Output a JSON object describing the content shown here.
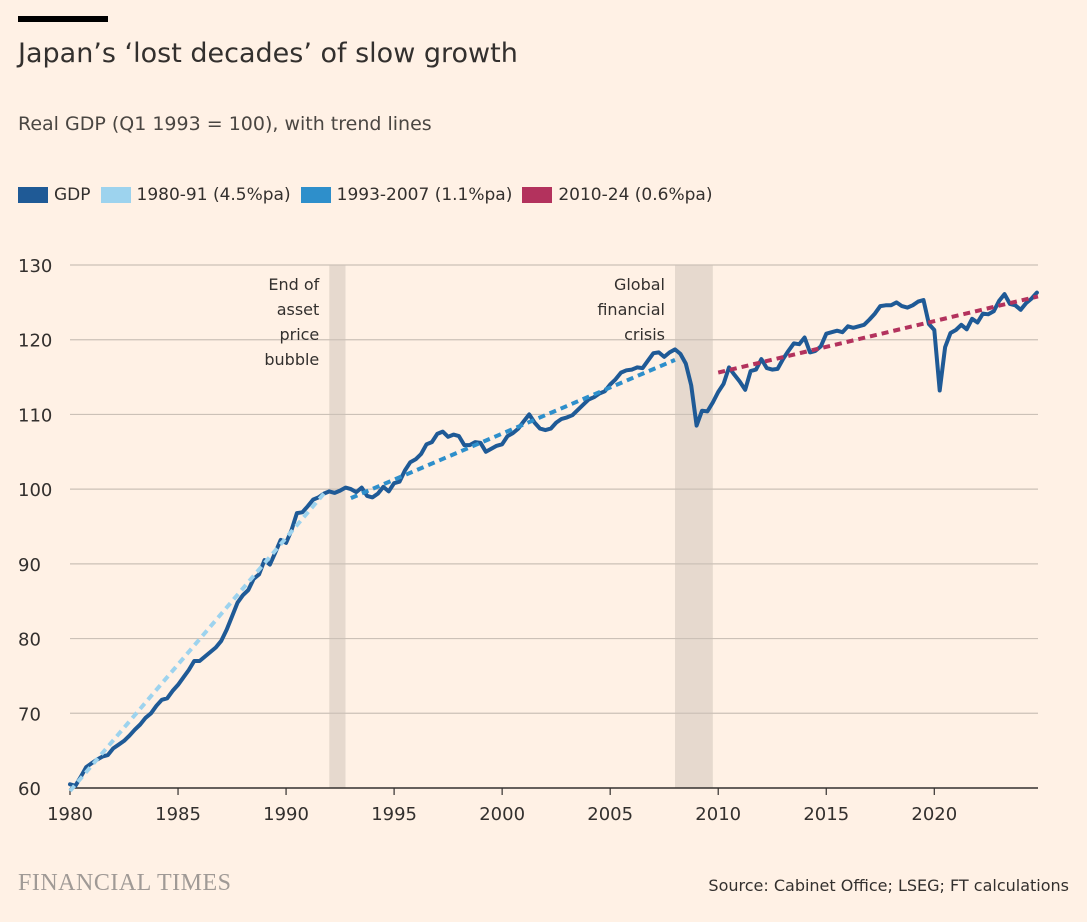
{
  "header": {
    "title": "Japan’s ‘lost decades’ of slow growth",
    "subtitle": "Real GDP (Q1 1993 = 100), with trend lines"
  },
  "legend": [
    {
      "label": "GDP",
      "color": "#1F5A96"
    },
    {
      "label": "1980-91 (4.5%pa)",
      "color": "#9DD3EE"
    },
    {
      "label": "1993-2007 (1.1%pa)",
      "color": "#2E8FCB"
    },
    {
      "label": "2010-24 (0.6%pa)",
      "color": "#B3325D"
    }
  ],
  "footer": {
    "brand": "FINANCIAL TIMES",
    "source": "Source: Cabinet Office; LSEG; FT calculations"
  },
  "chart_data": {
    "type": "line",
    "xlim": [
      1980,
      2024.8
    ],
    "ylim": [
      60,
      130
    ],
    "x_ticks": [
      "1980",
      "1985",
      "1990",
      "1995",
      "2000",
      "2005",
      "2010",
      "2015",
      "2020"
    ],
    "y_ticks": [
      "60",
      "70",
      "80",
      "90",
      "100",
      "110",
      "120",
      "130"
    ],
    "grid": true,
    "shaded_periods": [
      {
        "label_lines": [
          "End of",
          "asset",
          "price",
          "bubble"
        ],
        "start": 1992.0,
        "end": 1992.75
      },
      {
        "label_lines": [
          "Global",
          "financial",
          "crisis"
        ],
        "start": 2008.0,
        "end": 2009.75
      }
    ],
    "series": [
      {
        "name": "GDP",
        "color": "#1F5A96",
        "points": [
          [
            1980.0,
            60.5
          ],
          [
            1980.25,
            60.3
          ],
          [
            1980.5,
            61.5
          ],
          [
            1980.75,
            62.8
          ],
          [
            1981.0,
            63.3
          ],
          [
            1981.25,
            63.8
          ],
          [
            1981.5,
            64.2
          ],
          [
            1981.75,
            64.4
          ],
          [
            1982.0,
            65.3
          ],
          [
            1982.25,
            65.8
          ],
          [
            1982.5,
            66.3
          ],
          [
            1982.75,
            67.0
          ],
          [
            1983.0,
            67.8
          ],
          [
            1983.25,
            68.5
          ],
          [
            1983.5,
            69.4
          ],
          [
            1983.75,
            70.0
          ],
          [
            1984.0,
            71.0
          ],
          [
            1984.25,
            71.8
          ],
          [
            1984.5,
            72.0
          ],
          [
            1984.75,
            73.0
          ],
          [
            1985.0,
            73.8
          ],
          [
            1985.25,
            74.8
          ],
          [
            1985.5,
            75.8
          ],
          [
            1985.75,
            77.0
          ],
          [
            1986.0,
            77.0
          ],
          [
            1986.25,
            77.6
          ],
          [
            1986.5,
            78.2
          ],
          [
            1986.75,
            78.8
          ],
          [
            1987.0,
            79.7
          ],
          [
            1987.25,
            81.2
          ],
          [
            1987.5,
            83.0
          ],
          [
            1987.75,
            84.8
          ],
          [
            1988.0,
            85.8
          ],
          [
            1988.25,
            86.5
          ],
          [
            1988.5,
            88.0
          ],
          [
            1988.75,
            88.6
          ],
          [
            1989.0,
            90.5
          ],
          [
            1989.25,
            89.9
          ],
          [
            1989.5,
            91.5
          ],
          [
            1989.75,
            93.2
          ],
          [
            1990.0,
            92.8
          ],
          [
            1990.25,
            94.5
          ],
          [
            1990.5,
            96.8
          ],
          [
            1990.75,
            96.9
          ],
          [
            1991.0,
            97.7
          ],
          [
            1991.25,
            98.6
          ],
          [
            1991.5,
            98.9
          ],
          [
            1991.75,
            99.4
          ],
          [
            1992.0,
            99.7
          ],
          [
            1992.25,
            99.5
          ],
          [
            1992.5,
            99.8
          ],
          [
            1992.75,
            100.2
          ],
          [
            1993.0,
            100.0
          ],
          [
            1993.25,
            99.6
          ],
          [
            1993.5,
            100.2
          ],
          [
            1993.75,
            99.1
          ],
          [
            1994.0,
            98.9
          ],
          [
            1994.25,
            99.4
          ],
          [
            1994.5,
            100.3
          ],
          [
            1994.75,
            99.7
          ],
          [
            1995.0,
            100.8
          ],
          [
            1995.25,
            101.0
          ],
          [
            1995.5,
            102.5
          ],
          [
            1995.75,
            103.6
          ],
          [
            1996.0,
            104.0
          ],
          [
            1996.25,
            104.7
          ],
          [
            1996.5,
            106.0
          ],
          [
            1996.75,
            106.3
          ],
          [
            1997.0,
            107.4
          ],
          [
            1997.25,
            107.7
          ],
          [
            1997.5,
            107.0
          ],
          [
            1997.75,
            107.3
          ],
          [
            1998.0,
            107.1
          ],
          [
            1998.25,
            105.9
          ],
          [
            1998.5,
            105.9
          ],
          [
            1998.75,
            106.3
          ],
          [
            1999.0,
            106.2
          ],
          [
            1999.25,
            105.0
          ],
          [
            1999.5,
            105.4
          ],
          [
            1999.75,
            105.8
          ],
          [
            2000.0,
            106.0
          ],
          [
            2000.25,
            107.1
          ],
          [
            2000.5,
            107.5
          ],
          [
            2000.75,
            108.1
          ],
          [
            2001.0,
            109.1
          ],
          [
            2001.25,
            110.0
          ],
          [
            2001.5,
            108.9
          ],
          [
            2001.75,
            108.1
          ],
          [
            2002.0,
            107.9
          ],
          [
            2002.25,
            108.1
          ],
          [
            2002.5,
            108.9
          ],
          [
            2002.75,
            109.4
          ],
          [
            2003.0,
            109.6
          ],
          [
            2003.25,
            109.9
          ],
          [
            2003.5,
            110.6
          ],
          [
            2003.75,
            111.3
          ],
          [
            2004.0,
            112.0
          ],
          [
            2004.25,
            112.3
          ],
          [
            2004.5,
            112.8
          ],
          [
            2004.75,
            113.1
          ],
          [
            2005.0,
            114.0
          ],
          [
            2005.25,
            114.7
          ],
          [
            2005.5,
            115.6
          ],
          [
            2005.75,
            115.9
          ],
          [
            2006.0,
            116.0
          ],
          [
            2006.25,
            116.3
          ],
          [
            2006.5,
            116.2
          ],
          [
            2006.75,
            117.2
          ],
          [
            2007.0,
            118.2
          ],
          [
            2007.25,
            118.3
          ],
          [
            2007.5,
            117.7
          ],
          [
            2007.75,
            118.3
          ],
          [
            2008.0,
            118.7
          ],
          [
            2008.25,
            118.1
          ],
          [
            2008.5,
            116.8
          ],
          [
            2008.75,
            113.9
          ],
          [
            2009.0,
            108.5
          ],
          [
            2009.25,
            110.5
          ],
          [
            2009.5,
            110.4
          ],
          [
            2009.75,
            111.6
          ],
          [
            2010.0,
            113.0
          ],
          [
            2010.25,
            114.1
          ],
          [
            2010.5,
            116.3
          ],
          [
            2010.75,
            115.3
          ],
          [
            2011.0,
            114.4
          ],
          [
            2011.25,
            113.3
          ],
          [
            2011.5,
            115.8
          ],
          [
            2011.75,
            116.0
          ],
          [
            2012.0,
            117.4
          ],
          [
            2012.25,
            116.2
          ],
          [
            2012.5,
            116.0
          ],
          [
            2012.75,
            116.1
          ],
          [
            2013.0,
            117.4
          ],
          [
            2013.25,
            118.5
          ],
          [
            2013.5,
            119.5
          ],
          [
            2013.75,
            119.4
          ],
          [
            2014.0,
            120.3
          ],
          [
            2014.25,
            118.3
          ],
          [
            2014.5,
            118.5
          ],
          [
            2014.75,
            119.1
          ],
          [
            2015.0,
            120.8
          ],
          [
            2015.25,
            121.0
          ],
          [
            2015.5,
            121.2
          ],
          [
            2015.75,
            121.0
          ],
          [
            2016.0,
            121.8
          ],
          [
            2016.25,
            121.6
          ],
          [
            2016.5,
            121.8
          ],
          [
            2016.75,
            122.0
          ],
          [
            2017.0,
            122.7
          ],
          [
            2017.25,
            123.5
          ],
          [
            2017.5,
            124.5
          ],
          [
            2017.75,
            124.6
          ],
          [
            2018.0,
            124.6
          ],
          [
            2018.25,
            125.0
          ],
          [
            2018.5,
            124.5
          ],
          [
            2018.75,
            124.3
          ],
          [
            2019.0,
            124.6
          ],
          [
            2019.25,
            125.1
          ],
          [
            2019.5,
            125.3
          ],
          [
            2019.75,
            122.1
          ],
          [
            2020.0,
            121.3
          ],
          [
            2020.25,
            113.2
          ],
          [
            2020.5,
            119.0
          ],
          [
            2020.75,
            120.9
          ],
          [
            2021.0,
            121.3
          ],
          [
            2021.25,
            122.0
          ],
          [
            2021.5,
            121.4
          ],
          [
            2021.75,
            122.8
          ],
          [
            2022.0,
            122.3
          ],
          [
            2022.25,
            123.5
          ],
          [
            2022.5,
            123.4
          ],
          [
            2022.75,
            123.8
          ],
          [
            2023.0,
            125.2
          ],
          [
            2023.25,
            126.1
          ],
          [
            2023.5,
            124.8
          ],
          [
            2023.75,
            124.6
          ],
          [
            2024.0,
            124.0
          ],
          [
            2024.25,
            124.9
          ],
          [
            2024.5,
            125.5
          ],
          [
            2024.75,
            126.3
          ]
        ]
      },
      {
        "name": "1980-91 (4.5%pa)",
        "color": "#9DD3EE",
        "dashed": true,
        "points": [
          [
            1980.0,
            59.6
          ],
          [
            1991.75,
            99.4
          ]
        ]
      },
      {
        "name": "1993-2007 (1.1%pa)",
        "color": "#2E8FCB",
        "dashed": true,
        "points": [
          [
            1993.0,
            98.8
          ],
          [
            2008.0,
            117.3
          ]
        ]
      },
      {
        "name": "2010-24 (0.6%pa)",
        "color": "#B3325D",
        "dashed": true,
        "points": [
          [
            2010.0,
            115.6
          ],
          [
            2024.8,
            125.8
          ]
        ]
      }
    ]
  }
}
